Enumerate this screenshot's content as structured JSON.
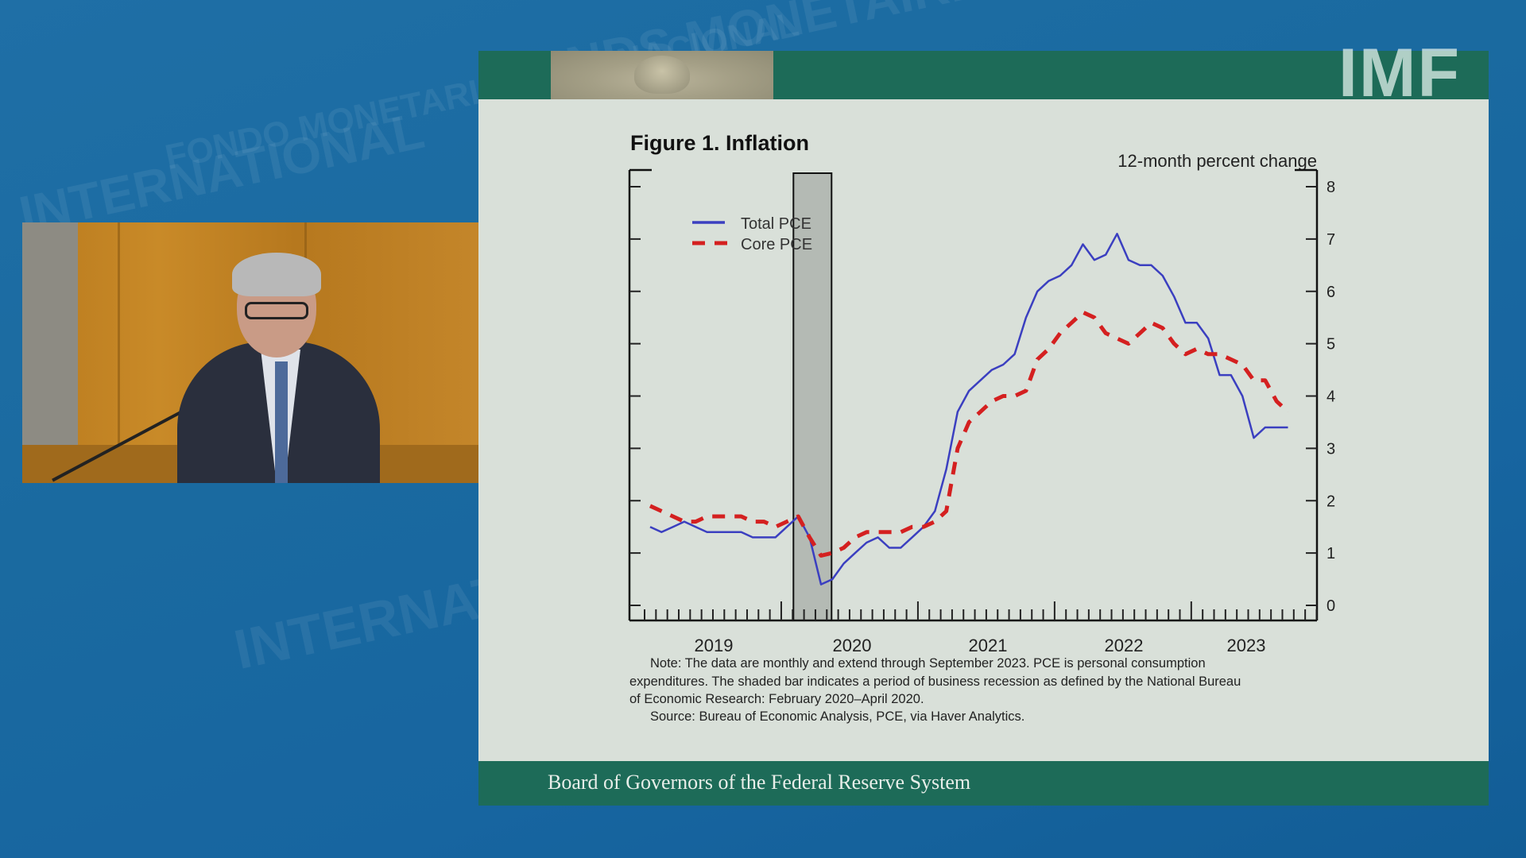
{
  "background": {
    "watermarks": [
      "INTERNATIONAL",
      "FONDO MONETARIO INTERNACIONAL",
      "FONDS MONÉTAIRE",
      "INTERNATIONAL"
    ]
  },
  "logo": {
    "text": "IMF"
  },
  "slide": {
    "footer": "Board of Governors of the Federal Reserve System",
    "notes": [
      "Note: The data are monthly and extend through September 2023. PCE is personal consumption",
      "expenditures. The shaded bar indicates a period of business recession as defined by the National Bureau",
      "of Economic Research: February 2020–April 2020.",
      "Source: Bureau of Economic Analysis, PCE, via Haver Analytics."
    ]
  },
  "colors": {
    "total": "#3b3fc0",
    "core": "#d42020",
    "recession": "#b4bab4",
    "green": "#1d6b58"
  },
  "chart_data": {
    "type": "line",
    "title": "Figure 1. Inflation",
    "ylabel": "12-month percent change",
    "ylim": [
      0,
      8
    ],
    "yticks": [
      0,
      1,
      2,
      3,
      4,
      5,
      6,
      7,
      8
    ],
    "x_start": "2019-01",
    "x_end": "2023-09",
    "year_labels": [
      "2019",
      "2020",
      "2021",
      "2022",
      "2023"
    ],
    "recession": {
      "start": "2020-02",
      "end": "2020-04"
    },
    "legend": {
      "position": "top-left",
      "entries": [
        "Total PCE",
        "Core PCE"
      ]
    },
    "series": [
      {
        "name": "Total PCE",
        "style": "solid",
        "values": [
          1.5,
          1.4,
          1.5,
          1.6,
          1.5,
          1.4,
          1.4,
          1.4,
          1.4,
          1.3,
          1.3,
          1.3,
          1.5,
          1.7,
          1.3,
          0.4,
          0.5,
          0.8,
          1.0,
          1.2,
          1.3,
          1.1,
          1.1,
          1.3,
          1.5,
          1.8,
          2.6,
          3.7,
          4.1,
          4.3,
          4.5,
          4.6,
          4.8,
          5.5,
          6.0,
          6.2,
          6.3,
          6.5,
          6.9,
          6.6,
          6.7,
          7.1,
          6.6,
          6.5,
          6.5,
          6.3,
          5.9,
          5.4,
          5.4,
          5.1,
          4.4,
          4.4,
          4.0,
          3.2,
          3.4,
          3.4,
          3.4
        ]
      },
      {
        "name": "Core PCE",
        "style": "dashed",
        "values": [
          1.9,
          1.8,
          1.7,
          1.6,
          1.6,
          1.7,
          1.7,
          1.7,
          1.7,
          1.6,
          1.6,
          1.5,
          1.6,
          1.7,
          1.3,
          0.95,
          1.0,
          1.1,
          1.3,
          1.4,
          1.4,
          1.4,
          1.4,
          1.5,
          1.5,
          1.6,
          1.8,
          3.0,
          3.5,
          3.7,
          3.9,
          4.0,
          4.0,
          4.1,
          4.7,
          4.9,
          5.2,
          5.4,
          5.6,
          5.5,
          5.2,
          5.1,
          5.0,
          5.2,
          5.4,
          5.3,
          5.0,
          4.8,
          4.9,
          4.8,
          4.8,
          4.7,
          4.6,
          4.3,
          4.3,
          3.9,
          3.7
        ]
      }
    ]
  }
}
